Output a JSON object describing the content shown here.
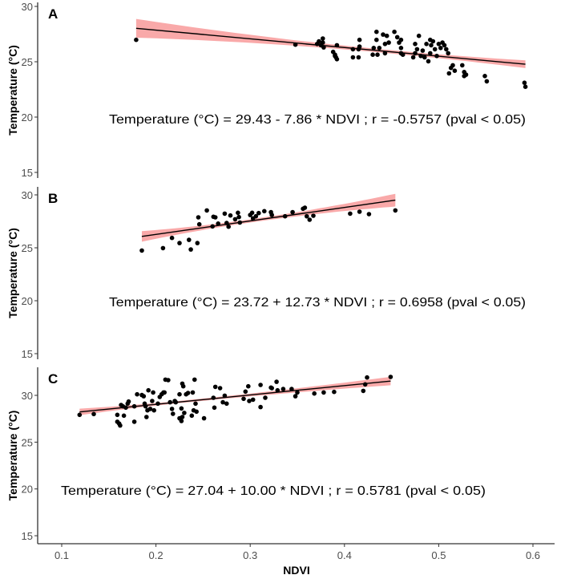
{
  "chart_data": [
    {
      "type": "scatter",
      "panel_label": "A",
      "xlabel": "NDVI",
      "ylabel": "Temperature (°C)",
      "xlim": [
        0.075,
        0.63
      ],
      "ylim": [
        14.5,
        30.2
      ],
      "yticks": [
        15,
        20,
        25,
        30
      ],
      "equation": "Temperature (°C) = 29.43 - 7.86 * NDVI ; r = -0.5757 (pval < 0.05)",
      "fit": {
        "intercept": 29.43,
        "slope": -7.86,
        "x_range": [
          0.179,
          0.592
        ],
        "ci": {
          "center": 0.45,
          "min_halfwidth": 0.15,
          "start_halfwidth": 0.85,
          "end_halfwidth": 0.35
        }
      },
      "points": [
        [
          0.179,
          26.98
        ],
        [
          0.348,
          26.54
        ],
        [
          0.371,
          26.61
        ],
        [
          0.373,
          26.85
        ],
        [
          0.375,
          26.49
        ],
        [
          0.377,
          27.1
        ],
        [
          0.378,
          26.3
        ],
        [
          0.377,
          26.73
        ],
        [
          0.388,
          25.89
        ],
        [
          0.39,
          25.64
        ],
        [
          0.39,
          25.52
        ],
        [
          0.391,
          25.4
        ],
        [
          0.392,
          25.23
        ],
        [
          0.392,
          26.49
        ],
        [
          0.409,
          26.13
        ],
        [
          0.409,
          25.4
        ],
        [
          0.415,
          25.4
        ],
        [
          0.415,
          26.13
        ],
        [
          0.416,
          26.37
        ],
        [
          0.416,
          26.98
        ],
        [
          0.43,
          25.64
        ],
        [
          0.431,
          26.25
        ],
        [
          0.434,
          27.7
        ],
        [
          0.434,
          26.98
        ],
        [
          0.435,
          25.64
        ],
        [
          0.437,
          26.25
        ],
        [
          0.443,
          25.77
        ],
        [
          0.441,
          27.46
        ],
        [
          0.443,
          26.61
        ],
        [
          0.445,
          27.34
        ],
        [
          0.447,
          26.73
        ],
        [
          0.453,
          27.7
        ],
        [
          0.456,
          27.22
        ],
        [
          0.458,
          26.73
        ],
        [
          0.46,
          25.77
        ],
        [
          0.46,
          26.25
        ],
        [
          0.462,
          25.64
        ],
        [
          0.46,
          26.98
        ],
        [
          0.473,
          25.4
        ],
        [
          0.475,
          26.61
        ],
        [
          0.475,
          25.77
        ],
        [
          0.477,
          26.13
        ],
        [
          0.479,
          27.34
        ],
        [
          0.481,
          25.52
        ],
        [
          0.483,
          26.01
        ],
        [
          0.485,
          25.4
        ],
        [
          0.487,
          26.61
        ],
        [
          0.489,
          25.04
        ],
        [
          0.491,
          26.98
        ],
        [
          0.491,
          25.77
        ],
        [
          0.492,
          26.49
        ],
        [
          0.494,
          26.85
        ],
        [
          0.496,
          26.13
        ],
        [
          0.498,
          25.52
        ],
        [
          0.5,
          26.61
        ],
        [
          0.502,
          26.25
        ],
        [
          0.504,
          26.73
        ],
        [
          0.506,
          26.49
        ],
        [
          0.508,
          26.13
        ],
        [
          0.51,
          25.77
        ],
        [
          0.511,
          23.95
        ],
        [
          0.513,
          24.44
        ],
        [
          0.515,
          24.68
        ],
        [
          0.517,
          24.19
        ],
        [
          0.525,
          24.68
        ],
        [
          0.527,
          24.07
        ],
        [
          0.529,
          23.83
        ],
        [
          0.527,
          23.71
        ],
        [
          0.549,
          23.71
        ],
        [
          0.551,
          23.23
        ],
        [
          0.591,
          23.1
        ],
        [
          0.592,
          22.74
        ]
      ]
    },
    {
      "type": "scatter",
      "panel_label": "B",
      "xlabel": "NDVI",
      "ylabel": "Temperature (°C)",
      "xlim": [
        0.075,
        0.63
      ],
      "ylim": [
        14.5,
        30.5
      ],
      "yticks": [
        15,
        20,
        25,
        30
      ],
      "equation": "Temperature (°C) = 23.72 + 12.73 * NDVI ; r = 0.6958 (pval < 0.05)",
      "fit": {
        "intercept": 23.72,
        "slope": 12.73,
        "x_range": [
          0.185,
          0.454
        ],
        "ci": {
          "center": 0.3,
          "min_halfwidth": 0.15,
          "start_halfwidth": 0.5,
          "end_halfwidth": 0.6
        }
      },
      "points": [
        [
          0.185,
          24.74
        ],
        [
          0.2075,
          24.97
        ],
        [
          0.217,
          25.93
        ],
        [
          0.225,
          25.45
        ],
        [
          0.235,
          25.75
        ],
        [
          0.237,
          24.84
        ],
        [
          0.244,
          25.45
        ],
        [
          0.245,
          27.88
        ],
        [
          0.246,
          27.22
        ],
        [
          0.254,
          28.53
        ],
        [
          0.26,
          27.02
        ],
        [
          0.261,
          27.93
        ],
        [
          0.263,
          27.88
        ],
        [
          0.266,
          27.29
        ],
        [
          0.273,
          28.23
        ],
        [
          0.275,
          27.34
        ],
        [
          0.277,
          26.99
        ],
        [
          0.279,
          28.05
        ],
        [
          0.284,
          27.7
        ],
        [
          0.287,
          28.31
        ],
        [
          0.288,
          27.9
        ],
        [
          0.289,
          27.39
        ],
        [
          0.3,
          28.1
        ],
        [
          0.302,
          28.31
        ],
        [
          0.303,
          27.77
        ],
        [
          0.306,
          27.98
        ],
        [
          0.309,
          28.28
        ],
        [
          0.315,
          28.46
        ],
        [
          0.322,
          28.36
        ],
        [
          0.323,
          28.1
        ],
        [
          0.337,
          27.98
        ],
        [
          0.345,
          28.36
        ],
        [
          0.356,
          28.69
        ],
        [
          0.358,
          28.79
        ],
        [
          0.36,
          27.98
        ],
        [
          0.363,
          27.65
        ],
        [
          0.367,
          28.03
        ],
        [
          0.406,
          28.23
        ],
        [
          0.416,
          28.41
        ],
        [
          0.426,
          28.18
        ],
        [
          0.454,
          28.53
        ]
      ]
    },
    {
      "type": "scatter",
      "panel_label": "C",
      "xlabel": "NDVI",
      "ylabel": "Temperature (°C)",
      "xlim": [
        0.075,
        0.63
      ],
      "ylim": [
        14.2,
        32.8
      ],
      "yticks": [
        15,
        20,
        25,
        30
      ],
      "xticks": [
        0.1,
        0.2,
        0.3,
        0.4,
        0.5,
        0.6
      ],
      "equation": "Temperature (°C) = 27.04 + 10.00 * NDVI ; r = 0.5781 (pval < 0.05)",
      "fit": {
        "intercept": 27.04,
        "slope": 10.0,
        "x_range": [
          0.119,
          0.449
        ],
        "ci": {
          "center": 0.23,
          "min_halfwidth": 0.12,
          "start_halfwidth": 0.35,
          "end_halfwidth": 0.45
        }
      },
      "points": [
        [
          0.119,
          27.92
        ],
        [
          0.134,
          28.0
        ],
        [
          0.159,
          27.92
        ],
        [
          0.159,
          27.18
        ],
        [
          0.161,
          26.98
        ],
        [
          0.162,
          26.78
        ],
        [
          0.163,
          28.97
        ],
        [
          0.165,
          28.83
        ],
        [
          0.166,
          27.83
        ],
        [
          0.168,
          28.69
        ],
        [
          0.17,
          29.12
        ],
        [
          0.171,
          29.34
        ],
        [
          0.177,
          27.18
        ],
        [
          0.177,
          28.83
        ],
        [
          0.18,
          30.11
        ],
        [
          0.185,
          30.03
        ],
        [
          0.187,
          29.91
        ],
        [
          0.188,
          29.12
        ],
        [
          0.189,
          28.83
        ],
        [
          0.19,
          27.69
        ],
        [
          0.191,
          28.4
        ],
        [
          0.192,
          30.54
        ],
        [
          0.194,
          28.55
        ],
        [
          0.196,
          29.4
        ],
        [
          0.197,
          30.31
        ],
        [
          0.198,
          28.4
        ],
        [
          0.202,
          29.12
        ],
        [
          0.204,
          29.83
        ],
        [
          0.206,
          30.11
        ],
        [
          0.208,
          30.31
        ],
        [
          0.209,
          30.31
        ],
        [
          0.21,
          31.68
        ],
        [
          0.213,
          31.63
        ],
        [
          0.215,
          29.26
        ],
        [
          0.217,
          28.55
        ],
        [
          0.218,
          28.03
        ],
        [
          0.22,
          29.4
        ],
        [
          0.221,
          29.26
        ],
        [
          0.225,
          30.11
        ],
        [
          0.225,
          27.55
        ],
        [
          0.227,
          27.26
        ],
        [
          0.227,
          28.6
        ],
        [
          0.228,
          31.25
        ],
        [
          0.228,
          27.69
        ],
        [
          0.229,
          30.97
        ],
        [
          0.23,
          28.12
        ],
        [
          0.232,
          30.11
        ],
        [
          0.234,
          30.26
        ],
        [
          0.238,
          27.83
        ],
        [
          0.239,
          30.31
        ],
        [
          0.24,
          28.4
        ],
        [
          0.241,
          31.68
        ],
        [
          0.242,
          29.12
        ],
        [
          0.243,
          28.26
        ],
        [
          0.251,
          27.55
        ],
        [
          0.261,
          29.74
        ],
        [
          0.262,
          28.69
        ],
        [
          0.263,
          30.91
        ],
        [
          0.268,
          30.77
        ],
        [
          0.271,
          29.26
        ],
        [
          0.273,
          29.97
        ],
        [
          0.275,
          29.12
        ],
        [
          0.293,
          29.63
        ],
        [
          0.295,
          30.4
        ],
        [
          0.298,
          30.97
        ],
        [
          0.299,
          29.4
        ],
        [
          0.303,
          29.54
        ],
        [
          0.311,
          31.11
        ],
        [
          0.311,
          28.75
        ],
        [
          0.316,
          29.74
        ],
        [
          0.322,
          30.83
        ],
        [
          0.323,
          30.77
        ],
        [
          0.328,
          31.45
        ],
        [
          0.329,
          30.54
        ],
        [
          0.335,
          30.68
        ],
        [
          0.344,
          30.68
        ],
        [
          0.348,
          29.91
        ],
        [
          0.35,
          30.31
        ],
        [
          0.368,
          30.2
        ],
        [
          0.378,
          30.31
        ],
        [
          0.389,
          30.37
        ],
        [
          0.42,
          30.48
        ],
        [
          0.422,
          31.17
        ],
        [
          0.424,
          31.91
        ],
        [
          0.449,
          31.97
        ]
      ]
    }
  ],
  "colors": {
    "ci_band": "#f8a0a0",
    "fit_line": "#000000",
    "points": "#000000",
    "axis": "#333333"
  }
}
